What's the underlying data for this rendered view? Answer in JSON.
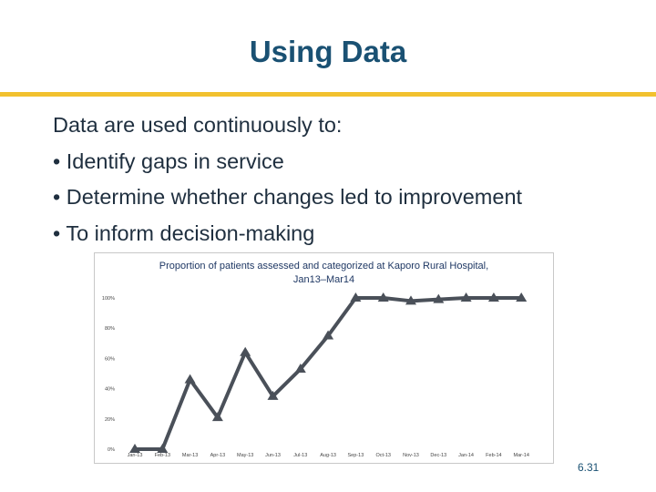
{
  "slide": {
    "title": "Using Data",
    "intro": "Data are used continuously to:",
    "bullets": [
      "• Identify gaps in service",
      "• Determine whether changes led to improvement",
      "• To inform decision-making"
    ],
    "slide_number": "6.31"
  },
  "colors": {
    "title": "#1a5173",
    "rule": "#f2c12e",
    "line": "#4a5059"
  },
  "chart_data": {
    "type": "line",
    "title_lines": [
      "Proportion of patients assessed and categorized at  Kaporo Rural Hospital,",
      "Jan13–Mar14"
    ],
    "categories": [
      "Jan-13",
      "Feb-13",
      "Mar-13",
      "Apr-13",
      "May-13",
      "Jun-13",
      "Jul-13",
      "Aug-13",
      "Sep-13",
      "Oct-13",
      "Nov-13",
      "Dec-13",
      "Jan-14",
      "Feb-14",
      "Mar-14"
    ],
    "y_ticks": [
      "0%",
      "20%",
      "40%",
      "60%",
      "80%",
      "100%"
    ],
    "ylim": [
      0,
      100
    ],
    "series": [
      {
        "values": [
          0,
          0,
          46,
          21,
          64,
          35,
          53,
          75,
          100,
          100,
          98,
          99,
          100,
          100,
          100
        ]
      }
    ],
    "marker": "triangle",
    "grid": false,
    "legend": "none"
  }
}
